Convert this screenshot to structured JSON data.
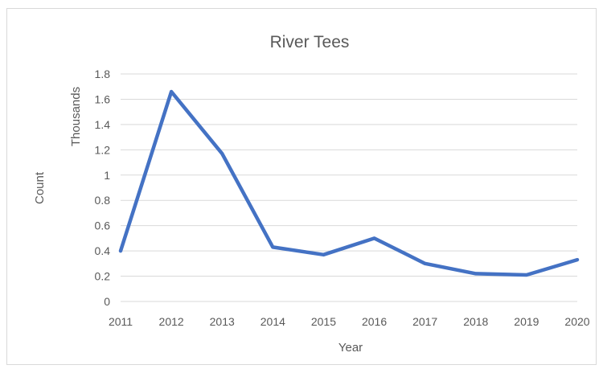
{
  "chart_data": {
    "type": "line",
    "title": "River Tees",
    "xlabel": "Year",
    "ylabel": "Count",
    "display_units": "Thousands",
    "categories": [
      "2011",
      "2012",
      "2013",
      "2014",
      "2015",
      "2016",
      "2017",
      "2018",
      "2019",
      "2020"
    ],
    "series": [
      {
        "values": [
          0.4,
          1.66,
          1.17,
          0.43,
          0.37,
          0.5,
          0.3,
          0.22,
          0.21,
          0.33
        ],
        "color": "#4472c4"
      }
    ],
    "ylim": [
      0,
      1.8
    ],
    "yticks": [
      "0",
      "0.2",
      "0.4",
      "0.6",
      "0.8",
      "1",
      "1.2",
      "1.4",
      "1.6",
      "1.8"
    ],
    "grid": true,
    "legend": "none"
  }
}
